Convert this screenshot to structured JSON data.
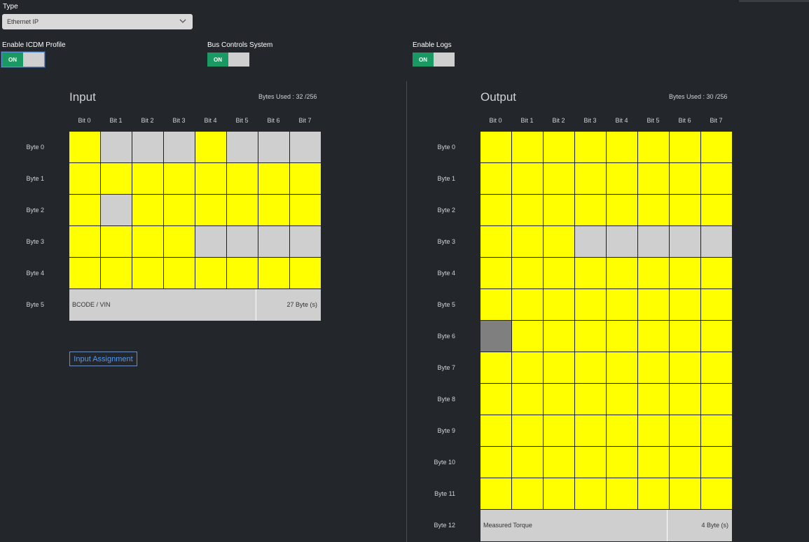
{
  "type_field": {
    "label": "Type",
    "value": "Ethernet IP"
  },
  "toggles": [
    {
      "label": "Enable ICDM Profile",
      "state": "ON"
    },
    {
      "label": "Bus Controls System",
      "state": "ON"
    },
    {
      "label": "Enable Logs",
      "state": "ON"
    }
  ],
  "input": {
    "title": "Input",
    "bytes_used": "Bytes Used : 32 /256",
    "bits": [
      "Bit 0",
      "Bit 1",
      "Bit 2",
      "Bit 3",
      "Bit 4",
      "Bit 5",
      "Bit 6",
      "Bit 7"
    ],
    "bytes": [
      "Byte 0",
      "Byte 1",
      "Byte 2",
      "Byte 3",
      "Byte 4",
      "Byte 5"
    ],
    "rows": [
      [
        "y",
        "g",
        "g",
        "g",
        "y",
        "g",
        "g",
        "g"
      ],
      [
        "y",
        "y",
        "y",
        "y",
        "y",
        "y",
        "y",
        "y"
      ],
      [
        "y",
        "g",
        "y",
        "y",
        "y",
        "y",
        "y",
        "y"
      ],
      [
        "y",
        "y",
        "y",
        "y",
        "g",
        "g",
        "g",
        "g"
      ],
      [
        "y",
        "y",
        "y",
        "y",
        "y",
        "y",
        "y",
        "y"
      ]
    ],
    "bar": {
      "name": "BCODE / VIN",
      "size": "27 Byte (s)"
    },
    "assign_button": "Input Assignment"
  },
  "output": {
    "title": "Output",
    "bytes_used": "Bytes Used : 30 /256",
    "bits": [
      "Bit 0",
      "Bit 1",
      "Bit 2",
      "Bit 3",
      "Bit 4",
      "Bit 5",
      "Bit 6",
      "Bit 7"
    ],
    "bytes": [
      "Byte 0",
      "Byte 1",
      "Byte 2",
      "Byte 3",
      "Byte 4",
      "Byte 5",
      "Byte 6",
      "Byte 7",
      "Byte 8",
      "Byte 9",
      "Byte 10",
      "Byte 11",
      "Byte 12"
    ],
    "rows": [
      [
        "y",
        "y",
        "y",
        "y",
        "y",
        "y",
        "y",
        "y"
      ],
      [
        "y",
        "y",
        "y",
        "y",
        "y",
        "y",
        "y",
        "y"
      ],
      [
        "y",
        "y",
        "y",
        "y",
        "y",
        "y",
        "y",
        "y"
      ],
      [
        "y",
        "y",
        "y",
        "g",
        "g",
        "g",
        "g",
        "g"
      ],
      [
        "y",
        "y",
        "y",
        "y",
        "y",
        "y",
        "y",
        "y"
      ],
      [
        "y",
        "y",
        "y",
        "y",
        "y",
        "y",
        "y",
        "y"
      ],
      [
        "d",
        "y",
        "y",
        "y",
        "y",
        "y",
        "y",
        "y"
      ],
      [
        "y",
        "y",
        "y",
        "y",
        "y",
        "y",
        "y",
        "y"
      ],
      [
        "y",
        "y",
        "y",
        "y",
        "y",
        "y",
        "y",
        "y"
      ],
      [
        "y",
        "y",
        "y",
        "y",
        "y",
        "y",
        "y",
        "y"
      ],
      [
        "y",
        "y",
        "y",
        "y",
        "y",
        "y",
        "y",
        "y"
      ],
      [
        "y",
        "y",
        "y",
        "y",
        "y",
        "y",
        "y",
        "y"
      ]
    ],
    "bar": {
      "name": "Measured Torque",
      "size": "4 Byte (s)"
    }
  },
  "colors": {
    "assigned": "#ffff00",
    "free": "#cfcfcf",
    "disabled": "#7f7f7f",
    "toggle_on": "#1a9a62",
    "link": "#4b9bff"
  },
  "icons": {
    "select": "chevron-down-icon"
  }
}
